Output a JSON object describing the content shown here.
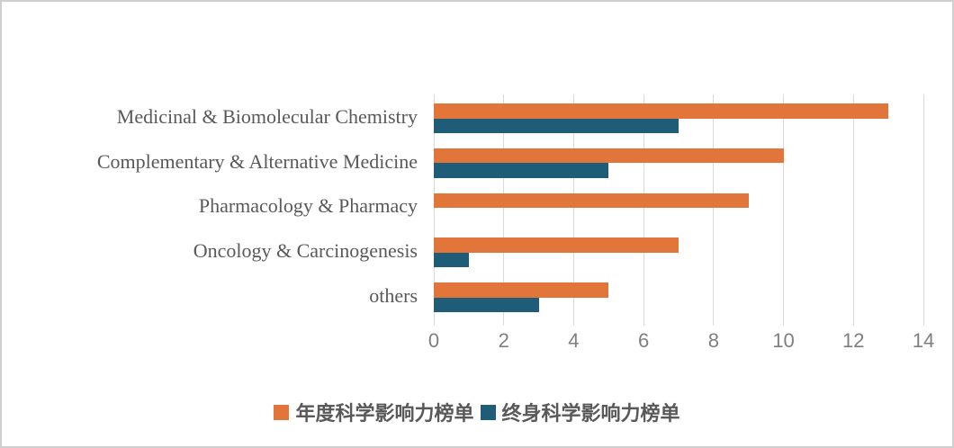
{
  "chart_data": {
    "type": "bar",
    "orientation": "horizontal",
    "title": "",
    "categories": [
      "Medicinal & Biomolecular Chemistry",
      "Complementary & Alternative Medicine",
      "Pharmacology & Pharmacy",
      "Oncology & Carcinogenesis",
      "others"
    ],
    "series": [
      {
        "name": "年度科学影响力榜单",
        "color": "#e2753a",
        "values": [
          13,
          10,
          9,
          7,
          5
        ]
      },
      {
        "name": "终身科学影响力榜单",
        "color": "#1f5c78",
        "values": [
          7,
          5,
          0,
          1,
          3
        ]
      }
    ],
    "xlabel": "",
    "ylabel": "",
    "x_axis": {
      "min": 0,
      "max": 14,
      "step": 2,
      "tick_labels": [
        "0",
        "2",
        "4",
        "6",
        "8",
        "10",
        "12",
        "14"
      ]
    },
    "grid": "vertical",
    "grid_color": "#d9d9d9",
    "legend_position": "bottom"
  }
}
